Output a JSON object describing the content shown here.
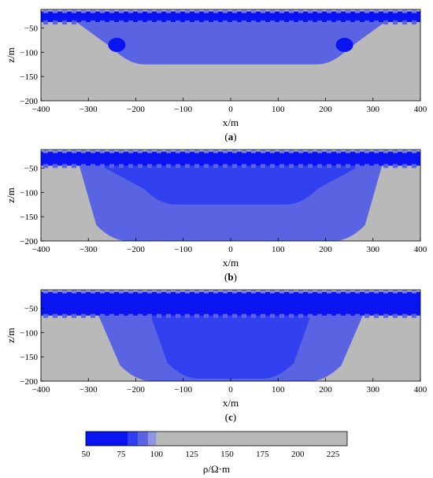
{
  "chart_data": [
    {
      "type": "heatmap",
      "panel_label": "(a)",
      "xlabel": "x/m",
      "ylabel": "z/m",
      "xlim": [
        -400,
        400
      ],
      "ylim": [
        -200,
        -12
      ],
      "x_ticks": [
        "−400",
        "−300",
        "−200",
        "−100",
        "0",
        "100",
        "200",
        "300",
        "400"
      ],
      "y_ticks": [
        "−50",
        "−100",
        "−150",
        "−200"
      ],
      "layers": [
        {
          "name": "conductive top layer",
          "z_top": -16,
          "z_bottom": -38,
          "rho": 50
        },
        {
          "name": "bowl anomaly",
          "x_left_top": -330,
          "x_right_top": 330,
          "x_left_bottom": -215,
          "x_right_bottom": 215,
          "z_bottom": -125,
          "rho": 88
        },
        {
          "name": "left inclusion",
          "x": -240,
          "z": -85,
          "rho": 70
        },
        {
          "name": "right inclusion",
          "x": 240,
          "z": -85,
          "rho": 70
        }
      ],
      "background_rho": 110
    },
    {
      "type": "heatmap",
      "panel_label": "(b)",
      "xlabel": "x/m",
      "ylabel": "z/m",
      "xlim": [
        -400,
        400
      ],
      "ylim": [
        -200,
        -12
      ],
      "x_ticks": [
        "−400",
        "−300",
        "−200",
        "−100",
        "0",
        "100",
        "200",
        "300",
        "400"
      ],
      "y_ticks": [
        "−50",
        "−100",
        "−150",
        "−200"
      ],
      "layers": [
        {
          "name": "conductive top layer",
          "z_top": -16,
          "z_bottom": -45,
          "rho": 50
        },
        {
          "name": "outer halo",
          "x_left_top": -390,
          "x_right_top": 390,
          "x_left_bottom": -200,
          "x_right_bottom": 200,
          "z_bottom": -200,
          "rho": 100
        },
        {
          "name": "bowl anomaly",
          "x_left_top": -320,
          "x_right_top": 320,
          "x_left_bottom": -250,
          "x_right_bottom": 250,
          "z_bottom": -200,
          "rho": 92
        },
        {
          "name": "core",
          "x_left_top": -280,
          "x_right_top": 280,
          "x_left_bottom": -150,
          "x_right_bottom": 150,
          "z_bottom": -125,
          "rho": 85
        }
      ],
      "background_rho": 110
    },
    {
      "type": "heatmap",
      "panel_label": "(c)",
      "xlabel": "x/m",
      "ylabel": "z/m",
      "xlim": [
        -400,
        400
      ],
      "ylim": [
        -200,
        -12
      ],
      "x_ticks": [
        "−400",
        "−300",
        "−200",
        "−100",
        "0",
        "100",
        "200",
        "300",
        "400"
      ],
      "y_ticks": [
        "−50",
        "−100",
        "−150",
        "−200"
      ],
      "layers": [
        {
          "name": "conductive top layer",
          "z_top": -16,
          "z_bottom": -65,
          "rho": 50
        },
        {
          "name": "outer halo",
          "x_left_top": -360,
          "x_right_top": 360,
          "x_left_bottom": -270,
          "x_right_bottom": 270,
          "z_bottom": -200,
          "rho": 100
        },
        {
          "name": "bowl anomaly",
          "x_left_top": -280,
          "x_right_top": 280,
          "x_left_bottom": -200,
          "x_right_bottom": 200,
          "z_bottom": -200,
          "rho": 92
        },
        {
          "name": "core",
          "x_left_top": -170,
          "x_right_top": 170,
          "x_left_bottom": -100,
          "x_right_bottom": 100,
          "z_bottom": -195,
          "rho": 85
        }
      ],
      "background_rho": 110
    },
    {
      "type": "colorbar",
      "label": "ρ/Ω·m",
      "range": [
        50,
        235
      ],
      "tick_labels": [
        "50",
        "75",
        "100",
        "125",
        "150",
        "175",
        "200",
        "225"
      ],
      "colors": [
        {
          "from": 50,
          "to": 80,
          "color": "#0a14f0"
        },
        {
          "from": 80,
          "to": 87,
          "color": "#3040ee"
        },
        {
          "from": 87,
          "to": 94,
          "color": "#5a63e2"
        },
        {
          "from": 94,
          "to": 100,
          "color": "#8e94dd"
        },
        {
          "from": 100,
          "to": 235,
          "color": "#b9b9b9"
        }
      ]
    }
  ]
}
